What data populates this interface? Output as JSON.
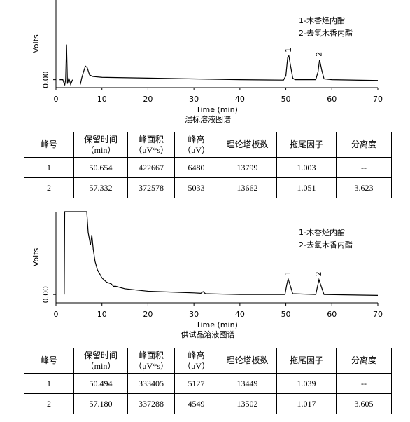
{
  "chart_data": [
    {
      "type": "line",
      "caption": "混标溶液图谱",
      "x_label": "Time (min)",
      "y_label": "Volts",
      "xlim": [
        0,
        70
      ],
      "xticks": [
        0,
        10,
        20,
        30,
        40,
        50,
        60,
        70
      ],
      "ylim": [
        -0.1,
        1.0
      ],
      "yticks": [
        {
          "value": 0,
          "label": "0.00"
        }
      ],
      "legend_text": [
        "1-木香烃内酯",
        "2-去氢木香内酯"
      ],
      "annotations": [
        {
          "text": "1",
          "x": 50.65,
          "y": 0.3
        },
        {
          "text": "2",
          "x": 57.33,
          "y": 0.25
        }
      ],
      "series": [
        {
          "color": "#000000",
          "x": [
            0.8,
            1.5,
            1.9,
            2.1,
            2.3,
            2.5,
            2.8,
            3.2,
            3.6,
            4.5,
            5.3,
            5.6,
            6.0,
            6.4,
            6.8,
            7.3,
            8,
            10,
            20,
            30,
            40,
            49.5,
            50,
            50.4,
            50.65,
            51,
            51.5,
            52,
            56.5,
            57,
            57.33,
            57.8,
            58.3,
            60,
            70
          ],
          "values": [
            0,
            0,
            -0.07,
            0,
            0.44,
            -0.05,
            0.02,
            -0.06,
            0,
            null,
            -0.06,
            0.02,
            0.1,
            0.17,
            0.15,
            0.06,
            0.04,
            0.03,
            0.02,
            0.01,
            0,
            -0.005,
            0.05,
            0.28,
            0.3,
            0.18,
            0.02,
            0,
            0,
            0.1,
            0.25,
            0.12,
            0.01,
            0,
            -0.01
          ]
        }
      ]
    },
    {
      "type": "line",
      "caption": "供试品溶液图谱",
      "x_label": "Time (min)",
      "y_label": "Volts",
      "xlim": [
        0,
        70
      ],
      "xticks": [
        0,
        10,
        20,
        30,
        40,
        50,
        60,
        70
      ],
      "ylim": [
        -0.1,
        1.0
      ],
      "yticks": [
        {
          "value": 0,
          "label": "0.00"
        }
      ],
      "legend_text": [
        "1-木香烃内酯",
        "2-去氢木香内酯"
      ],
      "annotations": [
        {
          "text": "1",
          "x": 50.5,
          "y": 0.19
        },
        {
          "text": "2",
          "x": 57.2,
          "y": 0.18
        }
      ],
      "series": [
        {
          "color": "#000000",
          "x": [
            1.8,
            1.9,
            6.7,
            7.0,
            7.5,
            7.8,
            8.1,
            8.5,
            9,
            10,
            11,
            12,
            12.5,
            13,
            15,
            20,
            25,
            30,
            31.5,
            32,
            32.5,
            40,
            49.8,
            50.2,
            50.5,
            51,
            51.5,
            56.5,
            57.2,
            57.8,
            58.3,
            70
          ],
          "values": [
            0,
            1.0,
            1.0,
            0.75,
            0.6,
            0.72,
            0.55,
            0.4,
            0.3,
            0.2,
            0.15,
            0.13,
            0.1,
            0.1,
            0.07,
            0.04,
            0.03,
            0.02,
            0.015,
            0.035,
            0.01,
            0,
            0,
            0.12,
            0.19,
            0.1,
            0.01,
            0,
            0.18,
            0.08,
            0,
            -0.01
          ]
        }
      ]
    }
  ],
  "tables": [
    {
      "header": [
        "峰号",
        "保留时间\n（min）",
        "峰面积\n（μV*s）",
        "峰高\n（μV）",
        "理论塔板数",
        "拖尾因子",
        "分离度"
      ],
      "rows": [
        [
          "1",
          "50.654",
          "422667",
          "6480",
          "13799",
          "1.003",
          "--"
        ],
        [
          "2",
          "57.332",
          "372578",
          "5033",
          "13662",
          "1.051",
          "3.623"
        ]
      ]
    },
    {
      "header": [
        "峰号",
        "保留时间\n（min）",
        "峰面积\n（μV*s）",
        "峰高\n（μV）",
        "理论塔板数",
        "拖尾因子",
        "分离度"
      ],
      "rows": [
        [
          "1",
          "50.494",
          "333405",
          "5127",
          "13449",
          "1.039",
          "--"
        ],
        [
          "2",
          "57.180",
          "337288",
          "4549",
          "13502",
          "1.017",
          "3.605"
        ]
      ]
    }
  ]
}
